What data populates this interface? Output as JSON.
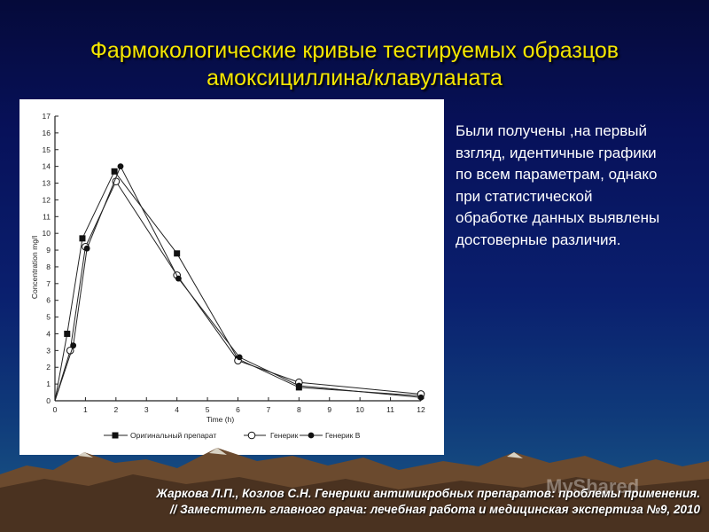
{
  "slide": {
    "title_line1": "Фармокологические кривые тестируемых образцов",
    "title_line2": "амоксициллина/клавуланата",
    "side_text": "Были получены ,на первый взгляд, идентичные графики по всем параметрам, однако при статистической обработке данных выявлены достоверные различия.",
    "footer_line1": "Жаркова Л.П., Козлов С.Н. Генерики антимикробных препаратов: проблемы применения.",
    "footer_line2": "// Заместитель главного врача: лечебная работа и медицинская экспертиза №9, 2010",
    "watermark": "MyShared"
  },
  "colors": {
    "title": "#f5e600",
    "background": "#07115a",
    "text": "#ffffff"
  },
  "chart_data": {
    "type": "line",
    "xlabel": "Time (h)",
    "ylabel": "Concentration mg/l",
    "xlim": [
      0,
      12
    ],
    "ylim": [
      0,
      17
    ],
    "xticks": [
      1,
      2,
      3,
      4,
      5,
      6,
      7,
      8,
      9,
      10,
      11,
      12
    ],
    "yticks": [
      0,
      1,
      2,
      3,
      4,
      5,
      6,
      7,
      8,
      9,
      10,
      11,
      12,
      13,
      14,
      15,
      16,
      17
    ],
    "grid": false,
    "legend_position": "bottom",
    "series": [
      {
        "name": "Оригинальный препарат",
        "marker": "square-filled",
        "x": [
          0,
          0.4,
          0.9,
          1.95,
          4.0,
          6.0,
          8.0,
          12.0
        ],
        "y": [
          0,
          4.0,
          9.7,
          13.7,
          8.8,
          2.5,
          0.8,
          0.3
        ]
      },
      {
        "name": "Генерик",
        "marker": "circle-open",
        "x": [
          0,
          0.5,
          1.0,
          2.0,
          4.0,
          6.0,
          8.0,
          12.0
        ],
        "y": [
          0,
          3.0,
          9.2,
          13.1,
          7.5,
          2.4,
          1.1,
          0.4
        ]
      },
      {
        "name": "Генерик В",
        "marker": "circle-filled",
        "x": [
          0,
          0.6,
          1.05,
          2.15,
          4.05,
          6.05,
          8.0,
          12.0
        ],
        "y": [
          0,
          3.3,
          9.1,
          14.0,
          7.3,
          2.6,
          0.9,
          0.2
        ]
      }
    ]
  }
}
